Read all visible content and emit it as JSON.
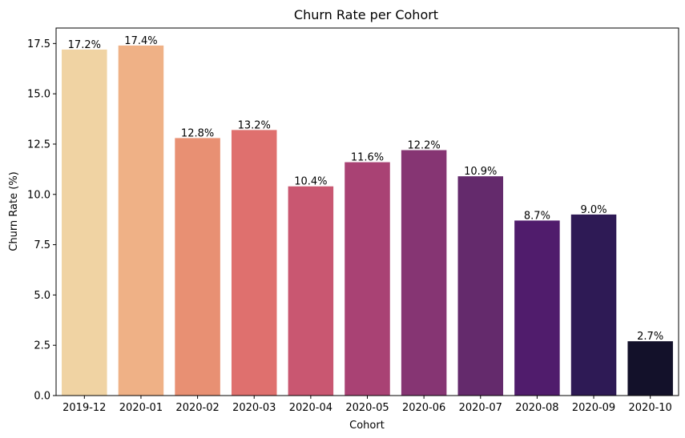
{
  "chart_data": {
    "type": "bar",
    "title": "Churn Rate per Cohort",
    "xlabel": "Cohort",
    "ylabel": "Churn Rate (%)",
    "categories": [
      "2019-12",
      "2020-01",
      "2020-02",
      "2020-03",
      "2020-04",
      "2020-05",
      "2020-06",
      "2020-07",
      "2020-08",
      "2020-09",
      "2020-10"
    ],
    "values": [
      17.2,
      17.4,
      12.8,
      13.2,
      10.4,
      11.6,
      12.2,
      10.9,
      8.7,
      9.0,
      2.7
    ],
    "data_labels": [
      "17.2%",
      "17.4%",
      "12.8%",
      "13.2%",
      "10.4%",
      "11.6%",
      "12.2%",
      "10.9%",
      "8.7%",
      "9.0%",
      "2.7%"
    ],
    "ylim": [
      0,
      18.27
    ],
    "yticks": [
      0.0,
      2.5,
      5.0,
      7.5,
      10.0,
      12.5,
      15.0,
      17.5
    ],
    "ytick_labels": [
      "0.0",
      "2.5",
      "5.0",
      "7.5",
      "10.0",
      "12.5",
      "15.0",
      "17.5"
    ],
    "grid": false,
    "legend": "none",
    "colors": [
      "#f0d3a3",
      "#efb186",
      "#e89073",
      "#df706e",
      "#c95771",
      "#a94274",
      "#863573",
      "#642a6c",
      "#501c6c",
      "#2e1a55",
      "#13112a"
    ]
  }
}
